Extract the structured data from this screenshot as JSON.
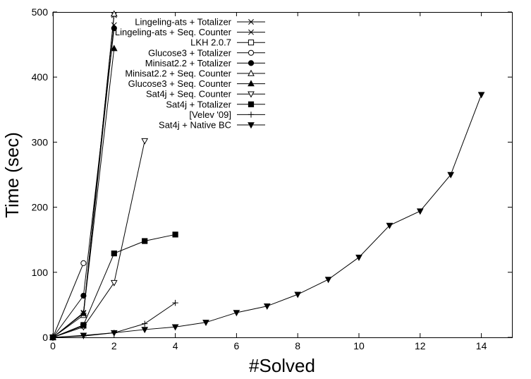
{
  "chart_data": {
    "type": "line",
    "title": "",
    "xlabel": "#Solved",
    "ylabel": "Time (sec)",
    "xlim": [
      0,
      15
    ],
    "ylim": [
      0,
      500
    ],
    "xticks": [
      0,
      2,
      4,
      6,
      8,
      10,
      12,
      14
    ],
    "yticks": [
      0,
      100,
      200,
      300,
      400,
      500
    ],
    "grid": false,
    "legend": "top-left",
    "series": [
      {
        "name": "Lingeling-ats + Totalizer",
        "marker": "star",
        "x": [
          0,
          1,
          2
        ],
        "y": [
          0,
          37,
          495
        ]
      },
      {
        "name": "Lingeling-ats + Seq. Counter",
        "marker": "x",
        "x": [
          0,
          1,
          2
        ],
        "y": [
          0,
          38,
          480
        ]
      },
      {
        "name": "LKH 2.0.7",
        "marker": "square-open",
        "x": [
          0,
          1
        ],
        "y": [
          0,
          18
        ]
      },
      {
        "name": "Glucose3 + Totalizer",
        "marker": "circle-open",
        "x": [
          0,
          1
        ],
        "y": [
          0,
          114
        ]
      },
      {
        "name": "Minisat2.2 + Totalizer",
        "marker": "circle-filled",
        "x": [
          0,
          1,
          2
        ],
        "y": [
          0,
          64,
          475
        ]
      },
      {
        "name": "Minisat2.2 + Seq. Counter",
        "marker": "triangle-up-open",
        "x": [
          0,
          1,
          2
        ],
        "y": [
          0,
          34,
          497
        ]
      },
      {
        "name": "Glucose3 + Seq. Counter",
        "marker": "triangle-up-filled",
        "x": [
          0,
          1,
          2
        ],
        "y": [
          0,
          37,
          444
        ]
      },
      {
        "name": "Sat4j + Seq. Counter",
        "marker": "triangle-down-open",
        "x": [
          0,
          1,
          2,
          3
        ],
        "y": [
          0,
          16,
          84,
          302
        ]
      },
      {
        "name": "Sat4j + Totalizer",
        "marker": "square-filled",
        "x": [
          0,
          1,
          2,
          3,
          4
        ],
        "y": [
          0,
          19,
          129,
          148,
          158
        ]
      },
      {
        "name": "[Velev '09]",
        "marker": "plus",
        "x": [
          0,
          1,
          2,
          3,
          4
        ],
        "y": [
          0,
          2,
          7,
          21,
          53
        ]
      },
      {
        "name": "Sat4j + Native BC",
        "marker": "triangle-down-filled",
        "x": [
          0,
          1,
          2,
          3,
          4,
          5,
          6,
          7,
          8,
          9,
          10,
          11,
          12,
          13,
          14
        ],
        "y": [
          0,
          3,
          7,
          12,
          16,
          23,
          38,
          48,
          66,
          89,
          123,
          172,
          194,
          250,
          373
        ]
      }
    ]
  }
}
